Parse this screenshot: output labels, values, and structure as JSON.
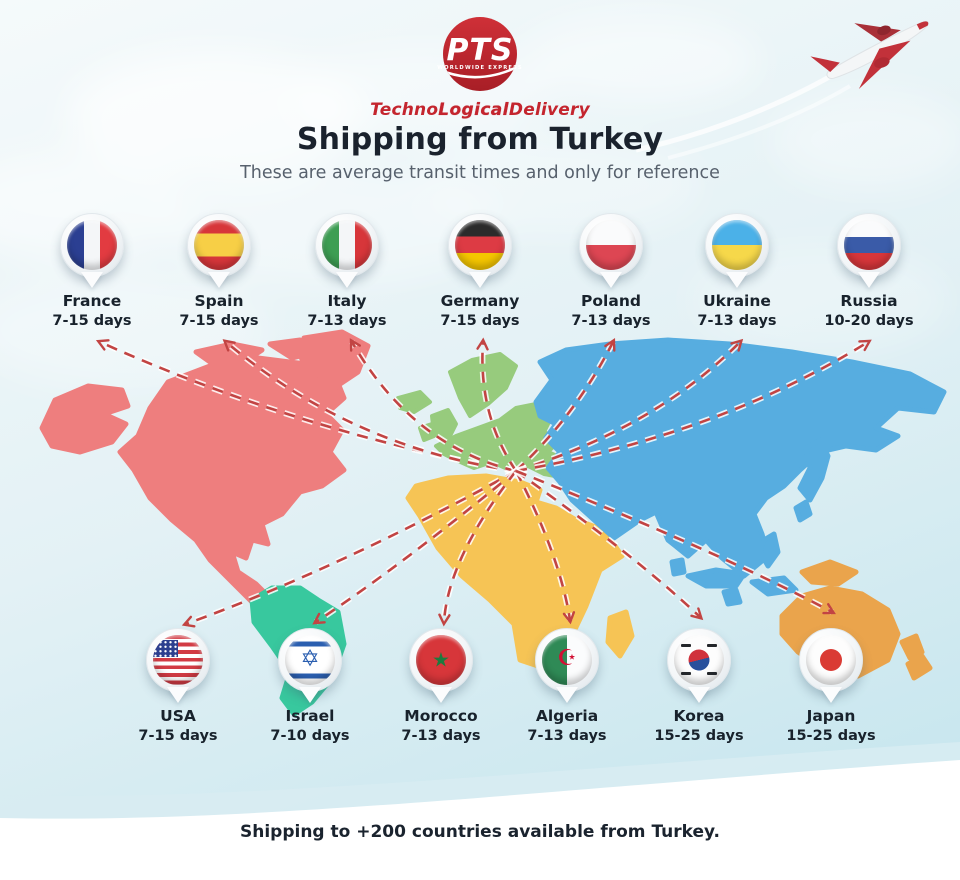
{
  "brand": {
    "logo_text": "PTS",
    "logo_tagline": "WORLDWIDE EXPRESS",
    "name_prefix": "Techno",
    "name_mid": "Logical",
    "name_suffix": "Delivery"
  },
  "header": {
    "title": "Shipping from Turkey",
    "subtitle": "These are average transit times and only for reference"
  },
  "pins_top": [
    {
      "name": "France",
      "days": "7-15 days",
      "flag": "france"
    },
    {
      "name": "Spain",
      "days": "7-15 days",
      "flag": "spain"
    },
    {
      "name": "Italy",
      "days": "7-13 days",
      "flag": "italy"
    },
    {
      "name": "Germany",
      "days": "7-15 days",
      "flag": "germany"
    },
    {
      "name": "Poland",
      "days": "7-13 days",
      "flag": "poland"
    },
    {
      "name": "Ukraine",
      "days": "7-13 days",
      "flag": "ukraine"
    },
    {
      "name": "Russia",
      "days": "10-20 days",
      "flag": "russia"
    }
  ],
  "pins_bottom": [
    {
      "name": "USA",
      "days": "7-15 days",
      "flag": "usa"
    },
    {
      "name": "Israel",
      "days": "7-10 days",
      "flag": "israel"
    },
    {
      "name": "Morocco",
      "days": "7-13 days",
      "flag": "morocco"
    },
    {
      "name": "Algeria",
      "days": "7-13 days",
      "flag": "algeria"
    },
    {
      "name": "Korea",
      "days": "15-25 days",
      "flag": "korea"
    },
    {
      "name": "Japan",
      "days": "15-25 days",
      "flag": "japan"
    }
  ],
  "footer": {
    "text": "Shipping to +200 countries available from Turkey."
  },
  "colors": {
    "arrow": "#c24443",
    "north_america": "#ee7e7e",
    "south_america": "#38c89e",
    "europe": "#97cb7d",
    "africa": "#f6c455",
    "asia": "#57ade0",
    "australia": "#eaa44c",
    "brand_red": "#c4252e",
    "title_text": "#1a222d",
    "subtitle_text": "#57616d",
    "background_top": "#f5fafb",
    "background_bottom": "#c2e4ed",
    "wave_band": "#d8ecf2",
    "wave_white": "#ffffff"
  }
}
